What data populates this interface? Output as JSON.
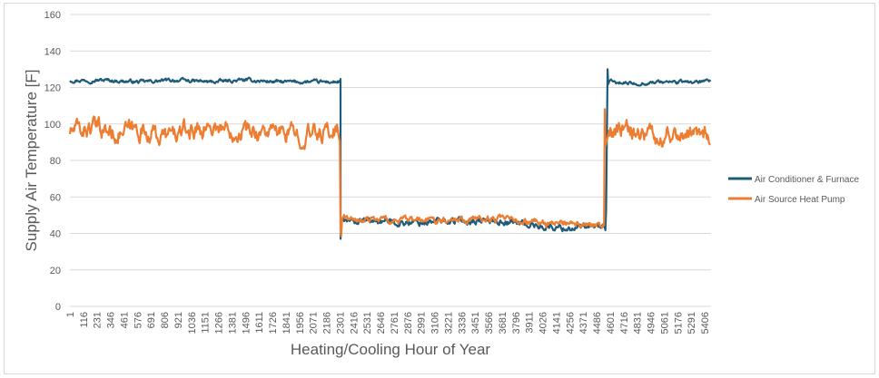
{
  "chart_data": {
    "type": "line",
    "title": "",
    "xlabel": "Heating/Cooling Hour of Year",
    "ylabel": "Supply Air Temperature [F]",
    "ylim": [
      0,
      160
    ],
    "yticks": [
      0,
      20,
      40,
      60,
      80,
      100,
      120,
      140,
      160
    ],
    "xlim": [
      1,
      5460
    ],
    "xtick_labels": [
      "1",
      "116",
      "231",
      "346",
      "461",
      "576",
      "691",
      "806",
      "921",
      "1036",
      "1151",
      "1266",
      "1381",
      "1496",
      "1611",
      "1726",
      "1841",
      "1956",
      "2071",
      "2186",
      "2301",
      "2416",
      "2531",
      "2646",
      "2761",
      "2876",
      "2991",
      "3106",
      "3221",
      "3336",
      "3451",
      "3566",
      "3681",
      "3796",
      "3911",
      "4026",
      "4141",
      "4256",
      "4371",
      "4486",
      "4601",
      "4716",
      "4831",
      "4946",
      "5061",
      "5176",
      "5291",
      "5406"
    ],
    "grid": "horizontal",
    "legend_position": "right",
    "series": [
      {
        "name": "Air Conditioner & Furnace",
        "color": "#1f5c7a",
        "x": [
          1,
          300,
          600,
          900,
          1200,
          1500,
          1800,
          2100,
          2305,
          2306,
          2310,
          2320,
          2400,
          2600,
          2800,
          3000,
          3200,
          3400,
          3600,
          3800,
          4000,
          4200,
          4400,
          4560,
          4565,
          4580,
          4585,
          4600,
          4800,
          5000,
          5200,
          5460
        ],
        "y": [
          124,
          124,
          123,
          124,
          123,
          124,
          123,
          123,
          123,
          37,
          44,
          47,
          46,
          47,
          46,
          46,
          47,
          47,
          47,
          46,
          44,
          43,
          43,
          44,
          40,
          137,
          122,
          123,
          122,
          123,
          123,
          123
        ]
      },
      {
        "name": "Air Source Heat Pump",
        "color": "#ed7d31",
        "x": [
          1,
          200,
          400,
          600,
          800,
          1000,
          1200,
          1400,
          1600,
          1800,
          2000,
          2200,
          2300,
          2305,
          2310,
          2320,
          2400,
          2600,
          2800,
          3000,
          3200,
          3400,
          3600,
          3800,
          4000,
          4200,
          4400,
          4550,
          4555,
          4560,
          4570,
          4600,
          4800,
          5000,
          5200,
          5460
        ],
        "y": [
          96,
          98,
          95,
          97,
          93,
          96,
          99,
          97,
          96,
          95,
          94,
          96,
          97,
          45,
          40,
          50,
          47,
          48,
          47,
          47,
          48,
          48,
          48,
          47,
          46,
          45,
          44,
          44,
          109,
          88,
          92,
          95,
          97,
          93,
          96,
          95
        ]
      }
    ]
  }
}
